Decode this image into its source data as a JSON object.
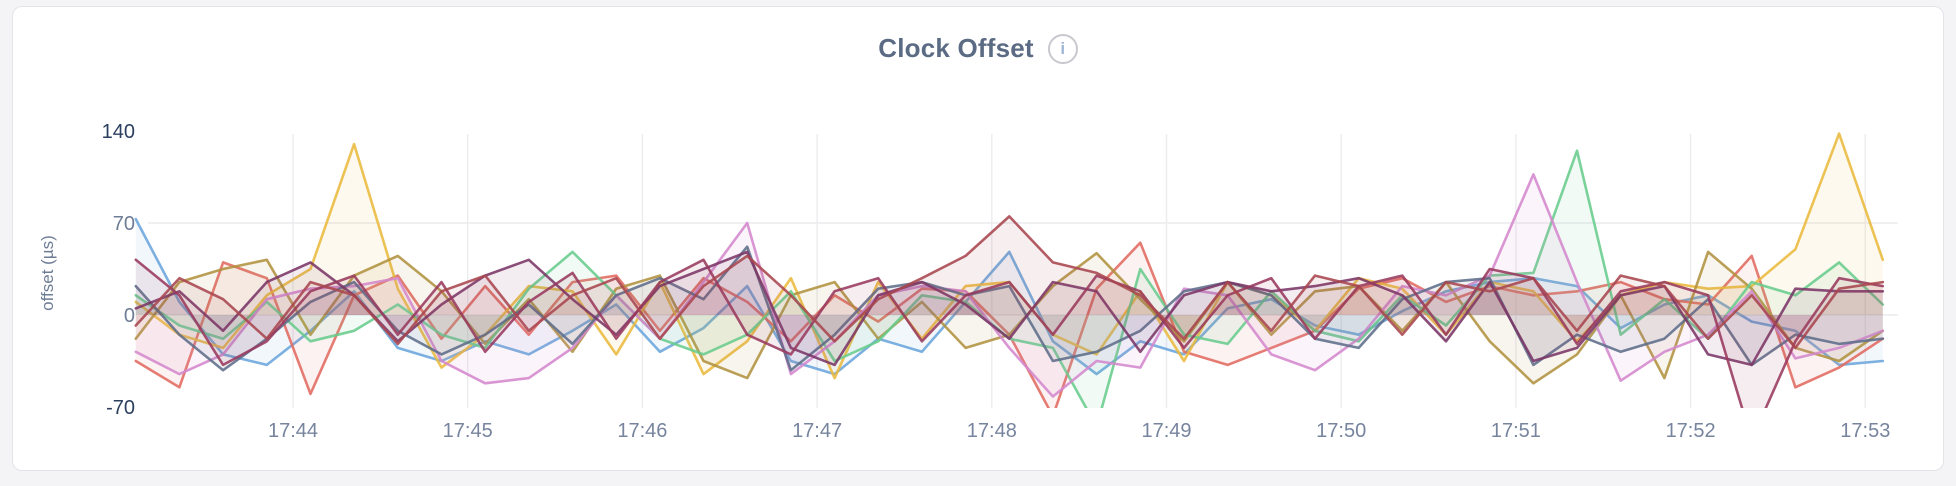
{
  "page": {
    "background": "#f4f4f6",
    "card_background": "#ffffff",
    "card_border": "#e4e4e8"
  },
  "header": {
    "title": "Clock Offset",
    "info_icon_glyph": "i"
  },
  "chart_data": {
    "type": "line",
    "title": "Clock Offset",
    "xlabel": "",
    "ylabel": "offset (µs)",
    "legend": "none",
    "grid": {
      "vertical_at_each_x_tick": true,
      "horizontal_at": [
        70,
        0
      ]
    },
    "ylim": [
      -75,
      148
    ],
    "y_ticks": [
      140,
      70,
      0,
      -70
    ],
    "y_tick_labels": [
      "140",
      "70",
      "0",
      "-70"
    ],
    "y_tick_label_colors": [
      "#2c3f5e",
      "#6d7c95",
      "#6d7c95",
      "#2c3f5e"
    ],
    "x_tick_labels": [
      "17:44",
      "17:45",
      "17:46",
      "17:47",
      "17:48",
      "17:49",
      "17:50",
      "17:51",
      "17:52",
      "17:53"
    ],
    "x_axis": {
      "first_point_minutes_after_17_43": 0.1,
      "step_minutes": 0.25,
      "points": 41
    },
    "axis_text_color": "#77849e",
    "series": [
      {
        "name": "blue",
        "color": "#6aa5dc",
        "values": [
          73,
          10,
          -30,
          -38,
          -12,
          18,
          -25,
          -35,
          -20,
          -30,
          -12,
          8,
          -28,
          -10,
          22,
          -35,
          -45,
          -18,
          -28,
          10,
          48,
          -20,
          -45,
          -20,
          -30,
          5,
          12,
          -8,
          -15,
          3,
          18,
          25,
          28,
          22,
          -10,
          8,
          15,
          -5,
          -12,
          -38,
          -35
        ]
      },
      {
        "name": "salmon",
        "color": "#e16a60",
        "values": [
          -35,
          -55,
          40,
          28,
          -60,
          15,
          30,
          -18,
          22,
          -15,
          25,
          30,
          -12,
          28,
          10,
          -20,
          15,
          -5,
          20,
          18,
          -15,
          -77,
          20,
          55,
          -28,
          -38,
          -25,
          -12,
          20,
          28,
          10,
          22,
          15,
          18,
          25,
          12,
          8,
          45,
          -55,
          -40,
          -18
        ]
      },
      {
        "name": "gold",
        "color": "#eaba3e",
        "values": [
          10,
          -15,
          -25,
          15,
          35,
          130,
          20,
          -40,
          -15,
          22,
          18,
          -30,
          25,
          -45,
          -20,
          28,
          -48,
          25,
          -18,
          22,
          25,
          -15,
          -30,
          18,
          -35,
          25,
          15,
          -12,
          28,
          20,
          -15,
          25,
          18,
          -20,
          15,
          25,
          20,
          22,
          50,
          138,
          42
        ]
      },
      {
        "name": "olive",
        "color": "#b1923f",
        "values": [
          -18,
          25,
          35,
          42,
          -15,
          30,
          45,
          18,
          -22,
          12,
          -28,
          20,
          30,
          -35,
          -48,
          15,
          25,
          -18,
          10,
          -25,
          -15,
          22,
          47,
          12,
          -20,
          25,
          -15,
          18,
          22,
          -12,
          25,
          -20,
          -52,
          -30,
          15,
          -48,
          48,
          20,
          -25,
          -35,
          -12
        ]
      },
      {
        "name": "green",
        "color": "#68cc8c",
        "values": [
          15,
          -8,
          -18,
          10,
          -20,
          -12,
          8,
          -15,
          -25,
          20,
          48,
          15,
          -18,
          -30,
          -15,
          18,
          -35,
          -20,
          15,
          10,
          -18,
          -25,
          -85,
          35,
          -15,
          -22,
          18,
          -12,
          -20,
          15,
          -8,
          30,
          32,
          125,
          -15,
          12,
          -18,
          25,
          15,
          40,
          8
        ]
      },
      {
        "name": "orchid",
        "color": "#d487cd",
        "values": [
          -28,
          -45,
          -30,
          12,
          20,
          22,
          28,
          -35,
          -52,
          -48,
          -25,
          15,
          -18,
          25,
          70,
          -45,
          -20,
          15,
          22,
          18,
          -25,
          -62,
          -35,
          -40,
          20,
          15,
          -30,
          -42,
          -18,
          22,
          15,
          30,
          107,
          25,
          -50,
          -28,
          -15,
          18,
          -33,
          -25,
          -12
        ]
      },
      {
        "name": "slate",
        "color": "#5f6d8a",
        "values": [
          22,
          -15,
          -42,
          -18,
          10,
          25,
          -12,
          -30,
          -15,
          8,
          -22,
          15,
          28,
          12,
          52,
          -42,
          -15,
          20,
          25,
          15,
          22,
          -35,
          -28,
          -12,
          18,
          25,
          15,
          -18,
          -25,
          12,
          25,
          28,
          -38,
          -15,
          -28,
          -18,
          12,
          -38,
          -15,
          -22,
          -18
        ]
      },
      {
        "name": "plum",
        "color": "#7a3566",
        "values": [
          5,
          18,
          -12,
          25,
          40,
          15,
          -20,
          8,
          30,
          42,
          12,
          -15,
          22,
          35,
          48,
          -25,
          -38,
          15,
          25,
          8,
          -18,
          25,
          18,
          -28,
          15,
          25,
          18,
          22,
          28,
          15,
          -20,
          25,
          -35,
          -25,
          15,
          22,
          -30,
          -38,
          20,
          18,
          18
        ]
      },
      {
        "name": "maroon",
        "color": "#99395d",
        "values": [
          42,
          15,
          -38,
          -20,
          18,
          30,
          -15,
          25,
          -28,
          10,
          32,
          -18,
          25,
          42,
          -15,
          -30,
          18,
          28,
          -20,
          15,
          25,
          -15,
          30,
          18,
          -25,
          15,
          28,
          -18,
          22,
          30,
          -15,
          35,
          28,
          -22,
          18,
          25,
          15,
          -95,
          -20,
          28,
          22
        ]
      },
      {
        "name": "brick",
        "color": "#a8454f",
        "values": [
          -8,
          28,
          12,
          -18,
          25,
          15,
          -22,
          18,
          30,
          -12,
          15,
          28,
          -18,
          22,
          45,
          15,
          -20,
          12,
          28,
          45,
          75,
          40,
          32,
          15,
          -18,
          25,
          -12,
          30,
          22,
          -15,
          25,
          18,
          28,
          -12,
          30,
          22,
          -18,
          15,
          -25,
          20,
          25
        ]
      }
    ]
  }
}
